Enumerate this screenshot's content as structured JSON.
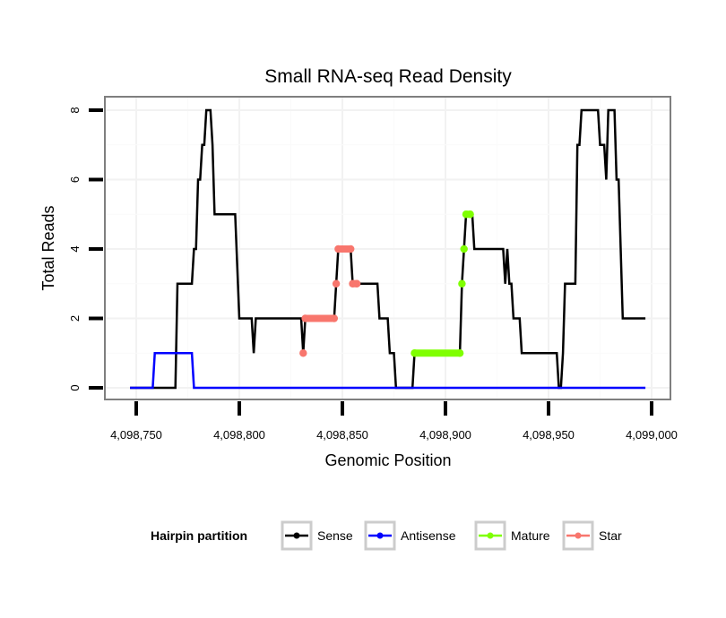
{
  "chart_data": {
    "type": "line",
    "title": "Small RNA-seq Read Density",
    "xlabel": "Genomic Position",
    "ylabel": "Total Reads",
    "xlim": [
      4098740,
      4099010
    ],
    "ylim": [
      -0.4,
      8.4
    ],
    "x_ticks": [
      4098750,
      4098800,
      4098850,
      4098900,
      4098950,
      4099000
    ],
    "x_tick_labels": [
      "4,098,750",
      "4,098,800",
      "4,098,850",
      "4,098,900",
      "4,098,950",
      "4,099,000"
    ],
    "y_ticks": [
      0,
      2,
      4,
      6,
      8
    ],
    "y_tick_labels": [
      "0",
      "2",
      "4",
      "6",
      "8"
    ],
    "grid": true,
    "legend": {
      "title": "Hairpin partition",
      "placement": "bottom",
      "entries": [
        "Sense",
        "Antisense",
        "Mature",
        "Star"
      ]
    },
    "series": [
      {
        "name": "Sense",
        "color": "#000000",
        "markers": false,
        "points": [
          [
            4098747,
            0
          ],
          [
            4098769,
            0
          ],
          [
            4098770,
            3
          ],
          [
            4098777,
            3
          ],
          [
            4098778,
            4
          ],
          [
            4098779,
            4
          ],
          [
            4098780,
            6
          ],
          [
            4098781,
            6
          ],
          [
            4098782,
            7
          ],
          [
            4098783,
            7
          ],
          [
            4098784,
            8
          ],
          [
            4098786,
            8
          ],
          [
            4098787,
            7
          ],
          [
            4098788,
            5
          ],
          [
            4098798,
            5
          ],
          [
            4098800,
            2
          ],
          [
            4098806,
            2
          ],
          [
            4098807,
            1
          ],
          [
            4098808,
            2
          ],
          [
            4098830,
            2
          ],
          [
            4098831,
            1
          ],
          [
            4098832,
            2
          ],
          [
            4098846,
            2
          ],
          [
            4098847,
            3
          ],
          [
            4098848,
            4
          ],
          [
            4098854,
            4
          ],
          [
            4098855,
            3
          ],
          [
            4098867,
            3
          ],
          [
            4098868,
            2
          ],
          [
            4098872,
            2
          ],
          [
            4098873,
            1
          ],
          [
            4098875,
            1
          ],
          [
            4098876,
            0
          ],
          [
            4098884,
            0
          ],
          [
            4098885,
            1
          ],
          [
            4098907,
            1
          ],
          [
            4098908,
            3
          ],
          [
            4098909,
            4
          ],
          [
            4098910,
            5
          ],
          [
            4098913,
            5
          ],
          [
            4098914,
            4
          ],
          [
            4098928,
            4
          ],
          [
            4098929,
            3
          ],
          [
            4098930,
            4
          ],
          [
            4098931,
            3
          ],
          [
            4098932,
            3
          ],
          [
            4098933,
            2
          ],
          [
            4098936,
            2
          ],
          [
            4098937,
            1
          ],
          [
            4098954,
            1
          ],
          [
            4098955,
            0
          ],
          [
            4098956,
            0
          ],
          [
            4098957,
            1
          ],
          [
            4098958,
            3
          ],
          [
            4098963,
            3
          ],
          [
            4098964,
            7
          ],
          [
            4098965,
            7
          ],
          [
            4098966,
            8
          ],
          [
            4098974,
            8
          ],
          [
            4098975,
            7
          ],
          [
            4098977,
            7
          ],
          [
            4098978,
            6
          ],
          [
            4098979,
            8
          ],
          [
            4098982,
            8
          ],
          [
            4098983,
            6
          ],
          [
            4098984,
            6
          ],
          [
            4098986,
            2
          ],
          [
            4098997,
            2
          ]
        ]
      },
      {
        "name": "Antisense",
        "color": "#0000FF",
        "markers": false,
        "points": [
          [
            4098747,
            0
          ],
          [
            4098758,
            0
          ],
          [
            4098759,
            1
          ],
          [
            4098777,
            1
          ],
          [
            4098778,
            0
          ],
          [
            4098997,
            0
          ]
        ]
      },
      {
        "name": "Mature",
        "color": "#7FFF00",
        "markers": true,
        "segments": [
          [
            [
              4098885,
              1
            ],
            [
              4098907,
              1
            ]
          ],
          [
            [
              4098908,
              3
            ]
          ],
          [
            [
              4098909,
              4
            ]
          ],
          [
            [
              4098910,
              5
            ],
            [
              4098912,
              5
            ]
          ]
        ]
      },
      {
        "name": "Star",
        "color": "#F8766D",
        "markers": true,
        "segments": [
          [
            [
              4098831,
              1
            ]
          ],
          [
            [
              4098832,
              2
            ],
            [
              4098846,
              2
            ]
          ],
          [
            [
              4098847,
              3
            ]
          ],
          [
            [
              4098848,
              4
            ],
            [
              4098854,
              4
            ]
          ],
          [
            [
              4098855,
              3
            ],
            [
              4098857,
              3
            ]
          ]
        ]
      }
    ]
  }
}
